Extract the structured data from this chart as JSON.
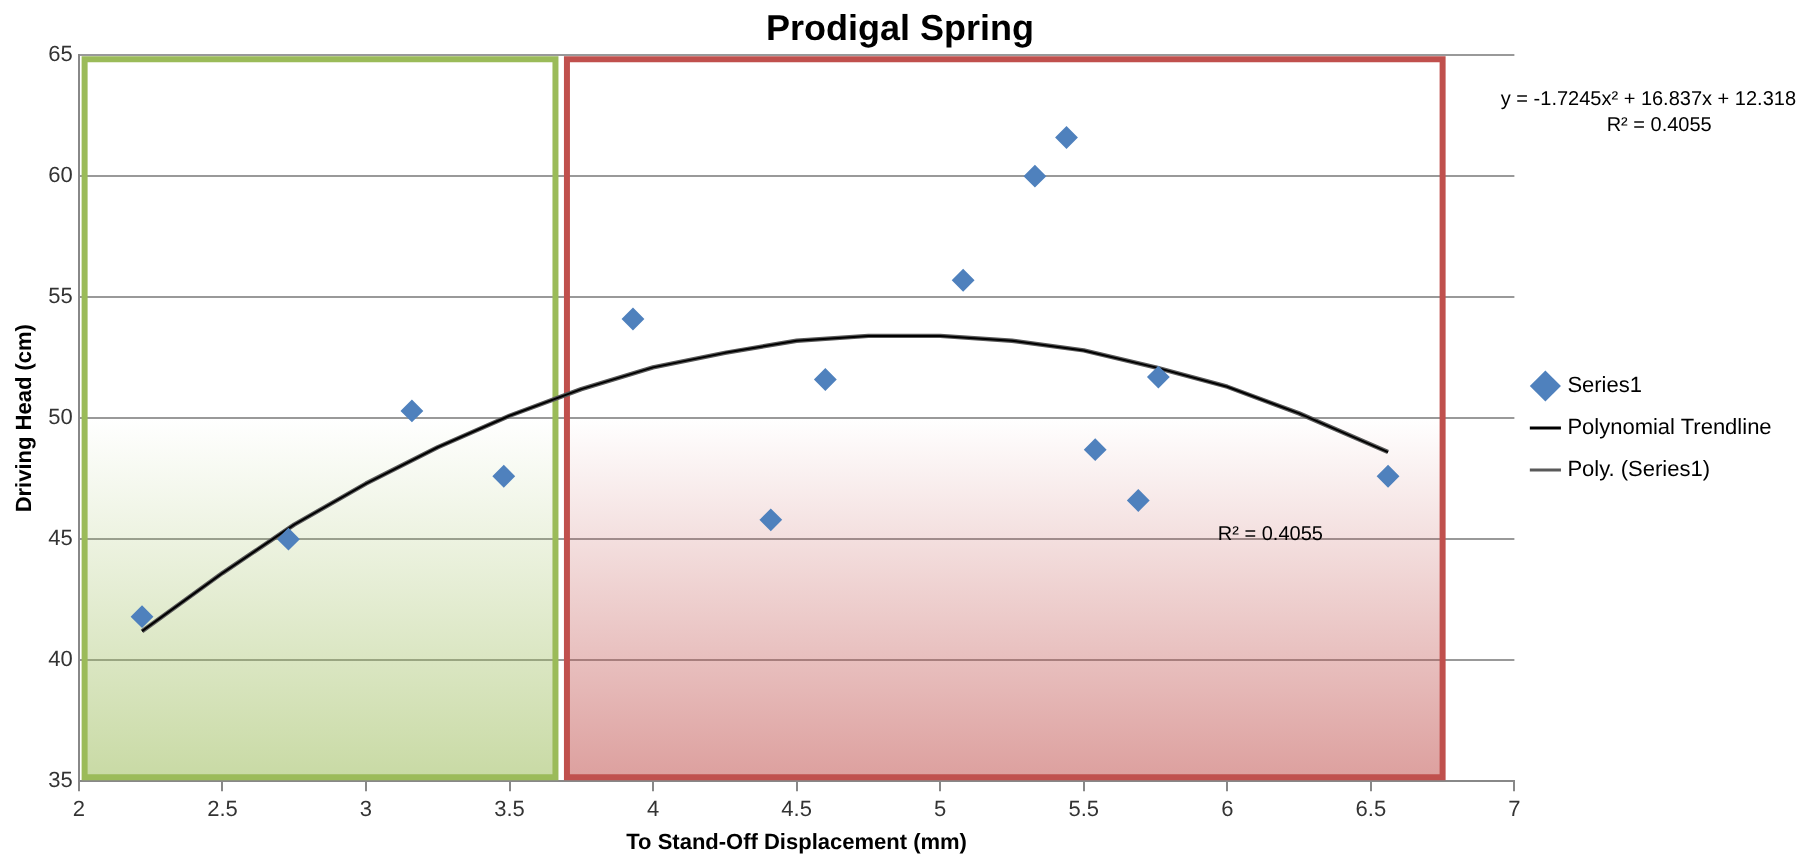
{
  "chart_data": {
    "type": "scatter",
    "title": "Prodigal Spring",
    "xlabel": "To Stand-Off Displacement (mm)",
    "ylabel": "Driving Head (cm)",
    "xlim": [
      2,
      7
    ],
    "xticks": [
      2,
      2.5,
      3,
      3.5,
      4,
      4.5,
      5,
      5.5,
      6,
      6.5,
      7
    ],
    "ylim": [
      35,
      65
    ],
    "yticks": [
      35,
      40,
      45,
      50,
      55,
      60,
      65
    ],
    "grid": "y",
    "legend": "right",
    "marker": "diamond",
    "series": [
      {
        "name": "Series1",
        "color": "#4f81bd",
        "x": [
          2.22,
          2.73,
          3.16,
          3.48,
          3.93,
          4.41,
          4.6,
          5.08,
          5.33,
          5.44,
          5.54,
          5.69,
          5.76,
          6.56
        ],
        "values": [
          41.8,
          45.0,
          50.3,
          47.6,
          54.1,
          45.8,
          51.6,
          55.7,
          60.0,
          61.6,
          48.7,
          46.6,
          51.7,
          47.6
        ]
      },
      {
        "name": "Polynomial Trendline",
        "type": "line",
        "marker": "none",
        "color": "#000000",
        "x": [
          2.22,
          2.5,
          2.75,
          3,
          3.25,
          3.5,
          3.75,
          4,
          4.25,
          4.5,
          4.75,
          5,
          5.25,
          5.5,
          5.75,
          6,
          6.25,
          6.56
        ],
        "values": [
          41.2,
          43.6,
          45.6,
          47.3,
          48.8,
          50.1,
          51.2,
          52.1,
          52.7,
          53.2,
          53.4,
          53.4,
          53.2,
          52.8,
          52.1,
          51.3,
          50.2,
          48.6
        ]
      },
      {
        "name": "Poly. (Series1)",
        "type": "line",
        "marker": "none",
        "color": "#595959",
        "x": [
          2.22,
          2.5,
          2.75,
          3,
          3.25,
          3.5,
          3.75,
          4,
          4.25,
          4.5,
          4.75,
          5,
          5.25,
          5.5,
          5.75,
          6,
          6.25,
          6.56
        ],
        "values": [
          41.2,
          43.6,
          45.6,
          47.3,
          48.8,
          50.1,
          51.2,
          52.1,
          52.7,
          53.2,
          53.4,
          53.4,
          53.2,
          52.8,
          52.1,
          51.3,
          50.2,
          48.6
        ]
      }
    ],
    "bands": [
      {
        "axis": "x",
        "from": 2.02,
        "to": 3.66,
        "color": "#9bbb59"
      },
      {
        "axis": "x",
        "from": 3.7,
        "to": 6.75,
        "color": "#c0504d"
      }
    ],
    "annotations": [
      "y = -1.7245x² + 16.837x + 12.318",
      "R² = 0.4055",
      "R² = 0.4055"
    ]
  }
}
